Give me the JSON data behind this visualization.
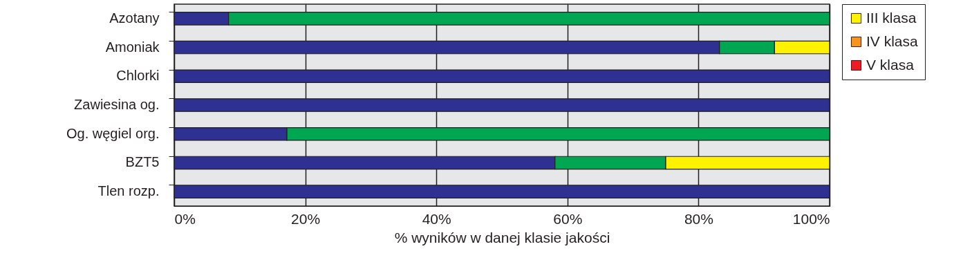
{
  "chart_data": {
    "type": "bar",
    "orientation": "horizontal",
    "stacked": true,
    "xlabel": "% wyników w danej klasie jakości",
    "categories": [
      "Azotany",
      "Amoniak",
      "Chlorki",
      "Zawiesina og.",
      "Og. węgiel org.",
      "BZT5",
      "Tlen rozp."
    ],
    "series": [
      {
        "color": "#2e3192",
        "values": [
          8.3,
          83.2,
          100,
          100,
          17.2,
          58.1,
          100
        ]
      },
      {
        "color": "#00a651",
        "values": [
          91.7,
          8.4,
          0,
          0,
          82.8,
          16.9,
          0
        ]
      },
      {
        "name": "III klasa",
        "color": "#fff200",
        "values": [
          0,
          8.4,
          0,
          0,
          0,
          25,
          0
        ]
      },
      {
        "name": "IV klasa",
        "color": "#f7941d",
        "values": [
          0,
          0,
          0,
          0,
          0,
          0,
          0
        ]
      },
      {
        "name": "V klasa",
        "color": "#ed1c24",
        "values": [
          0,
          0,
          0,
          0,
          0,
          0,
          0
        ]
      }
    ],
    "xlim": [
      0,
      100
    ],
    "xticks": [
      {
        "value": 0,
        "label": "0%"
      },
      {
        "value": 20,
        "label": "20%"
      },
      {
        "value": 40,
        "label": "40%"
      },
      {
        "value": 60,
        "label": "60%"
      },
      {
        "value": 80,
        "label": "80%"
      },
      {
        "value": 100,
        "label": "100%"
      }
    ],
    "grid": "x",
    "legend": "right"
  }
}
